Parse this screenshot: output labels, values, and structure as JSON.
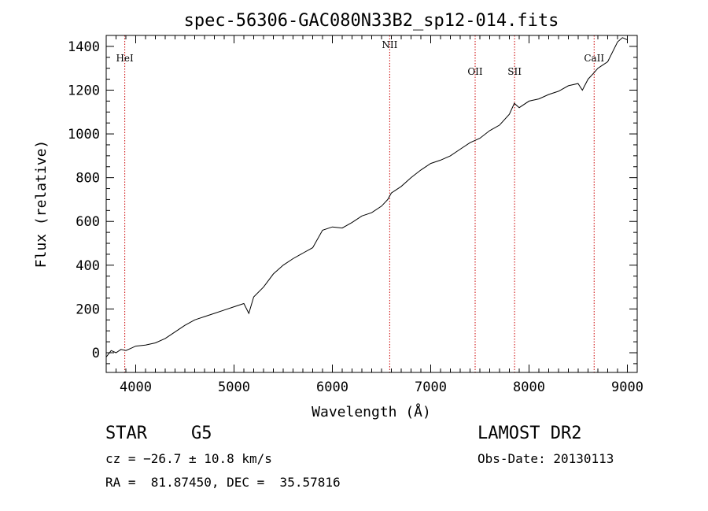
{
  "chart_data": {
    "type": "line",
    "title": "spec-56306-GAC080N33B2_sp12-014.fits",
    "xlabel": "Wavelength (Å)",
    "ylabel": "Flux (relative)",
    "xlim": [
      3700,
      9100
    ],
    "ylim": [
      -90,
      1450
    ],
    "x_ticks": [
      4000,
      5000,
      6000,
      7000,
      8000,
      9000
    ],
    "y_ticks": [
      0,
      200,
      400,
      600,
      800,
      1000,
      1200,
      1400
    ],
    "grid": false,
    "series": [
      {
        "x": [
          3700,
          3750,
          3800,
          3850,
          3900,
          3950,
          4000,
          4100,
          4200,
          4300,
          4400,
          4500,
          4600,
          4700,
          4800,
          4900,
          5000,
          5100,
          5150,
          5200,
          5300,
          5400,
          5500,
          5600,
          5700,
          5800,
          5900,
          6000,
          6100,
          6200,
          6300,
          6400,
          6500,
          6563,
          6600,
          6700,
          6800,
          6900,
          7000,
          7100,
          7200,
          7300,
          7400,
          7500,
          7600,
          7700,
          7800,
          7850,
          7900,
          8000,
          8100,
          8200,
          8300,
          8400,
          8498,
          8542,
          8600,
          8662,
          8700,
          8800,
          8900,
          8950,
          9000
        ],
        "y": [
          -20,
          10,
          0,
          15,
          10,
          20,
          30,
          35,
          45,
          65,
          95,
          125,
          150,
          165,
          180,
          195,
          210,
          225,
          180,
          255,
          300,
          360,
          400,
          430,
          455,
          480,
          560,
          575,
          570,
          595,
          625,
          640,
          670,
          700,
          730,
          760,
          800,
          835,
          865,
          880,
          900,
          930,
          960,
          980,
          1015,
          1040,
          1090,
          1140,
          1120,
          1150,
          1160,
          1180,
          1195,
          1220,
          1230,
          1200,
          1250,
          1280,
          1300,
          1330,
          1420,
          1440,
          1430
        ]
      }
    ],
    "reference_lines": [
      {
        "label": "HeI",
        "x": 3889
      },
      {
        "label": "NII",
        "x": 6583
      },
      {
        "label": "OII",
        "x": 7452
      },
      {
        "label": "SII",
        "x": 7853
      },
      {
        "label": "CaII",
        "x": 8662
      }
    ]
  },
  "info": {
    "object_class": "STAR",
    "subclass": "G5",
    "survey": "LAMOST DR2",
    "redshift": "cz = −26.7 ± 10.8 km/s",
    "obs_date": "Obs-Date: 20130113",
    "coords": "RA =  81.87450, DEC =  35.57816"
  },
  "colors": {
    "spectrum": "#000000",
    "reference_line": "#cc0000",
    "axis": "#000000"
  }
}
